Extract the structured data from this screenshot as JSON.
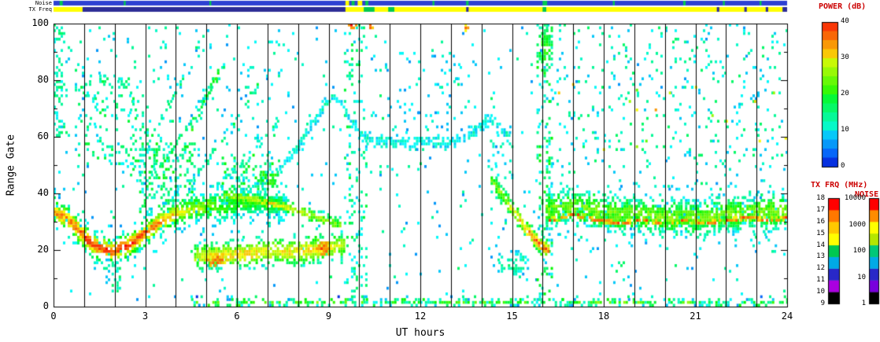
{
  "colors": {
    "background": "#ffffff",
    "axis": "#000000",
    "cbar_title": "#cc0000",
    "grid": "#000000"
  },
  "chart_data": {
    "type": "heatmap",
    "description": "HF radar range-time-intensity (RTI) plot: backscatter power vs UT hour and range gate, with noise and TX frequency summary strips on top and three color bars (power, TX frequency, noise) on the right",
    "title": "",
    "xlabel": "UT hours",
    "ylabel": "Range Gate",
    "xlim": [
      0,
      24
    ],
    "ylim": [
      0,
      100
    ],
    "x_tick_labels": [
      "0",
      "3",
      "6",
      "9",
      "12",
      "15",
      "18",
      "21",
      "24"
    ],
    "y_tick_labels": [
      "0",
      "20",
      "40",
      "60",
      "80",
      "100"
    ],
    "hour_gridlines": true,
    "colormap": "rainbow-blue-to-red",
    "colorbars": {
      "power": {
        "title": "POWER (dB)",
        "min": 0,
        "max": 40,
        "tick_labels": [
          "0",
          "10",
          "20",
          "30",
          "40"
        ]
      },
      "txfreq": {
        "title": "TX FRQ (MHz)",
        "min": 9,
        "max": 18,
        "tick_labels": [
          "9",
          "10",
          "11",
          "12",
          "13",
          "14",
          "15",
          "16",
          "17",
          "18"
        ],
        "segment_colors_bottom_to_top": [
          "#000000",
          "#aa00e0",
          "#2828c8",
          "#00aae6",
          "#00c850",
          "#ffff00",
          "#ffc800",
          "#ff7800",
          "#ff0000"
        ]
      },
      "noise": {
        "title": "NOISE",
        "tick_labels": [
          "1",
          "10",
          "100",
          "1000",
          "10000"
        ],
        "segment_colors_bottom_to_top": [
          "#000000",
          "#7800dc",
          "#2828c8",
          "#00aae6",
          "#00c878",
          "#b4e600",
          "#ffff00",
          "#ff8c00",
          "#ff0000"
        ]
      }
    },
    "strips": {
      "noise": {
        "label": "Noise",
        "base_color": "#2e41d2",
        "segments": [
          {
            "x": 0.2,
            "w": 0.1,
            "c": "#00c850"
          },
          {
            "x": 2.3,
            "w": 0.06,
            "c": "#00c850"
          },
          {
            "x": 5.1,
            "w": 0.06,
            "c": "#00c850"
          },
          {
            "x": 9.55,
            "w": 0.12,
            "c": "#ffff00"
          },
          {
            "x": 9.75,
            "w": 0.1,
            "c": "#00c850"
          },
          {
            "x": 9.95,
            "w": 0.15,
            "c": "#ffff00"
          },
          {
            "x": 10.2,
            "w": 0.1,
            "c": "#00c850"
          },
          {
            "x": 12.4,
            "w": 0.06,
            "c": "#00c850"
          },
          {
            "x": 13.5,
            "w": 0.08,
            "c": "#00c850"
          },
          {
            "x": 16.0,
            "w": 0.15,
            "c": "#00c850"
          },
          {
            "x": 18.3,
            "w": 0.06,
            "c": "#00c850"
          },
          {
            "x": 20.6,
            "w": 0.08,
            "c": "#00c850"
          },
          {
            "x": 21.9,
            "w": 0.06,
            "c": "#00c850"
          },
          {
            "x": 23.1,
            "w": 0.06,
            "c": "#00c850"
          }
        ]
      },
      "txfreq": {
        "label": "TX Freq",
        "base_color": "#ffff00",
        "segments": [
          {
            "x": 0.95,
            "w": 8.6,
            "c": "#2d2d96"
          },
          {
            "x": 10.15,
            "w": 0.35,
            "c": "#00c850"
          },
          {
            "x": 10.95,
            "w": 0.2,
            "c": "#00c850"
          },
          {
            "x": 13.5,
            "w": 0.08,
            "c": "#2d2d96"
          },
          {
            "x": 16.0,
            "w": 0.12,
            "c": "#00c850"
          },
          {
            "x": 21.7,
            "w": 0.08,
            "c": "#2d2d96"
          },
          {
            "x": 22.6,
            "w": 0.08,
            "c": "#2d2d96"
          },
          {
            "x": 23.3,
            "w": 0.08,
            "c": "#2d2d96"
          },
          {
            "x": 23.85,
            "w": 0.15,
            "c": "#2d2d96"
          }
        ]
      }
    },
    "features": [
      {
        "kind": "scatter",
        "name": "global-sparse",
        "x0": 0,
        "x1": 24,
        "y0": 2,
        "y1": 100,
        "d": 0.02,
        "p0": 6,
        "p1": 16
      },
      {
        "kind": "scatter",
        "name": "pre8-high-sparse",
        "x0": 0,
        "x1": 8,
        "y0": 42,
        "y1": 100,
        "d": 0.025,
        "p0": 7,
        "p1": 14
      },
      {
        "kind": "scatter",
        "name": "left-edge-cluster",
        "x0": 0,
        "x1": 0.35,
        "y0": 60,
        "y1": 100,
        "d": 0.3,
        "p0": 10,
        "p1": 16
      },
      {
        "kind": "scatter",
        "name": "upper-left-cluster",
        "x0": 0.8,
        "x1": 3.2,
        "y0": 50,
        "y1": 82,
        "d": 0.12,
        "p0": 10,
        "p1": 18
      },
      {
        "kind": "scatter",
        "name": "h2-low-dashes",
        "x0": 1.9,
        "x1": 2.15,
        "y0": 5,
        "y1": 16,
        "d": 0.5,
        "p0": 10,
        "p1": 16
      },
      {
        "kind": "scatter",
        "name": "post3-cyan",
        "x0": 2.8,
        "x1": 4.6,
        "y0": 33,
        "y1": 58,
        "d": 0.28,
        "p0": 10,
        "p1": 20
      },
      {
        "kind": "scatter",
        "name": "mid5-teal",
        "x0": 5.5,
        "x1": 7.3,
        "y0": 40,
        "y1": 54,
        "d": 0.25,
        "p0": 10,
        "p1": 20
      },
      {
        "kind": "scatter",
        "name": "stripe-10",
        "x0": 9.5,
        "x1": 10.2,
        "y0": 2,
        "y1": 100,
        "d": 0.15,
        "p0": 8,
        "p1": 18
      },
      {
        "kind": "scatter",
        "name": "mid-high-sparse",
        "x0": 10.3,
        "x1": 13.8,
        "y0": 62,
        "y1": 90,
        "d": 0.05,
        "p0": 6,
        "p1": 12
      },
      {
        "kind": "scatter",
        "name": "gap-14-cyan",
        "x0": 14.2,
        "x1": 15,
        "y0": 45,
        "y1": 62,
        "d": 0.15,
        "p0": 8,
        "p1": 14
      },
      {
        "kind": "scatter",
        "name": "stripe-16",
        "x0": 15.8,
        "x1": 16.3,
        "y0": 2,
        "y1": 100,
        "d": 0.2,
        "p0": 8,
        "p1": 20
      },
      {
        "kind": "scatter",
        "name": "post16-high-sparse",
        "x0": 16.3,
        "x1": 24,
        "y0": 46,
        "y1": 100,
        "d": 0.05,
        "p0": 7,
        "p1": 16
      },
      {
        "kind": "scatter",
        "name": "post16-warm-specks",
        "x0": 16.5,
        "x1": 24,
        "y0": 55,
        "y1": 80,
        "d": 0.008,
        "p0": 24,
        "p1": 34
      },
      {
        "kind": "band",
        "name": "main-band-fringe",
        "pts": [
          [
            0,
            33
          ],
          [
            0.9,
            25
          ],
          [
            1.9,
            19
          ],
          [
            2.9,
            25
          ],
          [
            3.9,
            32
          ],
          [
            5.2,
            35
          ],
          [
            7.6,
            35
          ]
        ],
        "core": 11,
        "w": 18,
        "d": 0.2
      },
      {
        "kind": "band",
        "name": "main-band",
        "pts": [
          [
            0,
            33
          ],
          [
            0.5,
            30
          ],
          [
            0.9,
            25
          ],
          [
            1.3,
            21
          ],
          [
            1.9,
            19
          ],
          [
            2.4,
            21
          ],
          [
            2.9,
            25
          ],
          [
            3.4,
            29
          ],
          [
            3.9,
            32
          ],
          [
            4.5,
            34
          ],
          [
            5.2,
            35
          ],
          [
            6,
            36
          ],
          [
            7,
            36
          ],
          [
            7.6,
            35
          ]
        ],
        "core": [
          [
            0,
            33
          ],
          [
            0.5,
            34
          ],
          [
            0.9,
            37
          ],
          [
            1.3,
            38
          ],
          [
            1.9,
            38
          ],
          [
            2.4,
            37
          ],
          [
            2.9,
            36
          ],
          [
            3.4,
            34
          ],
          [
            3.9,
            31
          ],
          [
            4.5,
            27
          ],
          [
            5.2,
            23
          ],
          [
            6,
            21
          ],
          [
            7,
            19
          ],
          [
            7.6,
            17
          ]
        ],
        "w": 9,
        "d": 0.9
      },
      {
        "kind": "band",
        "name": "mid-band",
        "pts": [
          [
            5.4,
            39
          ],
          [
            6.2,
            38
          ],
          [
            7,
            36
          ],
          [
            7.8,
            34
          ],
          [
            8.6,
            31
          ],
          [
            9.4,
            28
          ]
        ],
        "core": [
          [
            5.4,
            24
          ],
          [
            6.2,
            28
          ],
          [
            7,
            30
          ],
          [
            7.8,
            28
          ],
          [
            8.6,
            26
          ],
          [
            9.4,
            24
          ]
        ],
        "w": 5,
        "d": 0.85
      },
      {
        "kind": "band",
        "name": "low-yellow-blob",
        "pts": [
          [
            4.6,
            17
          ],
          [
            5.4,
            18
          ],
          [
            6.2,
            18
          ],
          [
            7,
            19
          ],
          [
            7.8,
            19
          ],
          [
            8.6,
            20
          ],
          [
            9.5,
            21
          ]
        ],
        "core": [
          [
            4.6,
            26
          ],
          [
            5.4,
            30
          ],
          [
            6.2,
            31
          ],
          [
            7,
            30
          ],
          [
            7.8,
            30
          ],
          [
            8.6,
            31
          ],
          [
            9.5,
            27
          ]
        ],
        "w": 10,
        "d": 0.92
      },
      {
        "kind": "band",
        "name": "diag-1",
        "pts": [
          [
            2.5,
            46
          ],
          [
            3.1,
            58
          ],
          [
            3.7,
            70
          ],
          [
            4.2,
            80
          ]
        ],
        "core": 16,
        "w": 3,
        "d": 0.5
      },
      {
        "kind": "band",
        "name": "diag-2",
        "pts": [
          [
            3.3,
            46
          ],
          [
            4,
            57
          ],
          [
            4.7,
            68
          ],
          [
            5.3,
            79
          ],
          [
            5.6,
            85
          ]
        ],
        "core": 17,
        "w": 3,
        "d": 0.55
      },
      {
        "kind": "band",
        "name": "diag-3",
        "pts": [
          [
            4.4,
            43
          ],
          [
            5.1,
            53
          ],
          [
            5.8,
            63
          ],
          [
            6.4,
            73
          ],
          [
            6.7,
            79
          ]
        ],
        "core": 15,
        "w": 3,
        "d": 0.45
      },
      {
        "kind": "band",
        "name": "diag-4",
        "pts": [
          [
            5.3,
            41
          ],
          [
            6.1,
            50
          ],
          [
            6.8,
            58
          ],
          [
            7.4,
            66
          ]
        ],
        "core": 14,
        "w": 3,
        "d": 0.35
      },
      {
        "kind": "band",
        "name": "teal-arc",
        "pts": [
          [
            4.5,
            62
          ],
          [
            4.8,
            70
          ],
          [
            5.1,
            77
          ],
          [
            5.4,
            83
          ]
        ],
        "core": 20,
        "w": 4,
        "d": 0.7
      },
      {
        "kind": "band",
        "name": "blue-arc",
        "pts": [
          [
            7.3,
            47
          ],
          [
            7.8,
            54
          ],
          [
            8.3,
            62
          ],
          [
            8.8,
            70
          ],
          [
            9.1,
            74
          ],
          [
            9.4,
            71
          ],
          [
            9.7,
            65
          ],
          [
            10,
            61
          ],
          [
            10.4,
            58
          ],
          [
            11,
            58
          ],
          [
            11.6,
            57
          ],
          [
            12.2,
            58
          ],
          [
            12.8,
            57
          ],
          [
            13.4,
            59
          ],
          [
            13.8,
            62
          ],
          [
            14.2,
            66
          ],
          [
            14.6,
            63
          ],
          [
            14.9,
            59
          ]
        ],
        "core": 11,
        "w": 4,
        "d": 0.85
      },
      {
        "kind": "band",
        "name": "descend-15",
        "pts": [
          [
            14.3,
            44
          ],
          [
            14.7,
            38
          ],
          [
            15.1,
            32
          ],
          [
            15.5,
            26
          ],
          [
            15.9,
            21
          ],
          [
            16.2,
            19
          ]
        ],
        "core": [
          [
            14.3,
            22
          ],
          [
            14.7,
            26
          ],
          [
            15.1,
            30
          ],
          [
            15.5,
            34
          ],
          [
            15.9,
            37
          ],
          [
            16.2,
            35
          ]
        ],
        "w": 7,
        "d": 0.9
      },
      {
        "kind": "band",
        "name": "post16-fringe",
        "pts": [
          [
            16.1,
            34
          ],
          [
            18,
            33
          ],
          [
            20,
            31
          ],
          [
            22,
            32
          ],
          [
            24,
            33
          ]
        ],
        "core": 11,
        "w": 22,
        "d": 0.18
      },
      {
        "kind": "band",
        "name": "post16-band",
        "pts": [
          [
            16.1,
            34
          ],
          [
            17,
            35
          ],
          [
            18,
            33
          ],
          [
            19,
            32
          ],
          [
            20,
            31
          ],
          [
            21,
            31
          ],
          [
            22,
            32
          ],
          [
            23,
            33
          ],
          [
            24,
            33
          ]
        ],
        "core": 24,
        "w": 13,
        "d": 0.8
      },
      {
        "kind": "band",
        "name": "post16-red-core",
        "pts": [
          [
            16.2,
            30
          ],
          [
            17,
            32
          ],
          [
            17.8,
            30
          ],
          [
            18.5,
            29
          ],
          [
            19.2,
            30
          ],
          [
            20,
            29
          ],
          [
            20.6,
            30
          ],
          [
            21.3,
            29
          ],
          [
            22,
            30
          ],
          [
            22.7,
            31
          ],
          [
            23.4,
            30
          ],
          [
            24,
            31
          ]
        ],
        "core": 36,
        "w": 3,
        "d": 0.75
      },
      {
        "kind": "band",
        "name": "bottom-row",
        "pts": [
          [
            4.5,
            1
          ],
          [
            24,
            1
          ]
        ],
        "core": 18,
        "w": 3,
        "d": 0.55,
        "j": 16
      },
      {
        "kind": "blob",
        "name": "red-spot-early",
        "cx": 5.3,
        "cy": 16,
        "rx": 0.35,
        "ry": 3,
        "d": 0.8,
        "p": 36
      },
      {
        "kind": "blob",
        "name": "red-spot-late",
        "cx": 8.8,
        "cy": 20,
        "rx": 0.3,
        "ry": 2.5,
        "d": 0.8,
        "p": 36
      },
      {
        "kind": "blob",
        "name": "cyan-blob-15",
        "cx": 15,
        "cy": 15,
        "rx": 0.6,
        "ry": 5,
        "d": 0.5,
        "p": 14
      },
      {
        "kind": "blob",
        "name": "stripe16-top-green",
        "cx": 16.05,
        "cy": 91,
        "rx": 0.25,
        "ry": 9,
        "d": 0.7,
        "p": 20
      },
      {
        "kind": "blob",
        "name": "green-dash-7",
        "cx": 7,
        "cy": 45,
        "rx": 0.4,
        "ry": 4,
        "d": 0.5,
        "p": 22
      },
      {
        "kind": "blob",
        "name": "top-red-1",
        "cx": 9.75,
        "cy": 99,
        "rx": 0.12,
        "ry": 2,
        "d": 1,
        "p": 38
      },
      {
        "kind": "blob",
        "name": "top-red-2",
        "cx": 10.35,
        "cy": 99,
        "rx": 0.1,
        "ry": 1.5,
        "d": 1,
        "p": 38
      },
      {
        "kind": "blob",
        "name": "top-red-3",
        "cx": 13.45,
        "cy": 98,
        "rx": 0.08,
        "ry": 1.5,
        "d": 1,
        "p": 36
      }
    ]
  }
}
